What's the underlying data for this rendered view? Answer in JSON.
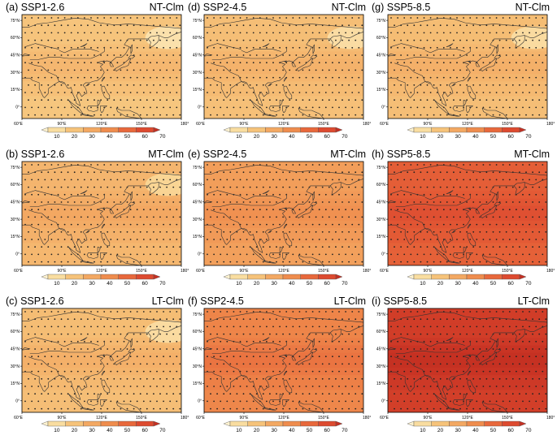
{
  "panels": [
    {
      "label": "(a)",
      "scenario": "SSP1-2.6",
      "period": "NT-Clm",
      "level": 0.3
    },
    {
      "label": "(d)",
      "scenario": "SSP2-4.5",
      "period": "NT-Clm",
      "level": 0.33
    },
    {
      "label": "(g)",
      "scenario": "SSP5-8.5",
      "period": "NT-Clm",
      "level": 0.34
    },
    {
      "label": "(b)",
      "scenario": "SSP1-2.6",
      "period": "MT-Clm",
      "level": 0.38
    },
    {
      "label": "(e)",
      "scenario": "SSP2-4.5",
      "period": "MT-Clm",
      "level": 0.5
    },
    {
      "label": "(h)",
      "scenario": "SSP5-8.5",
      "period": "MT-Clm",
      "level": 0.78
    },
    {
      "label": "(c)",
      "scenario": "SSP1-2.6",
      "period": "LT-Clm",
      "level": 0.34
    },
    {
      "label": "(f)",
      "scenario": "SSP2-4.5",
      "period": "LT-Clm",
      "level": 0.62
    },
    {
      "label": "(i)",
      "scenario": "SSP5-8.5",
      "period": "LT-Clm",
      "level": 0.95
    }
  ],
  "lat_ticks": [
    "75°N",
    "60°N",
    "45°N",
    "30°N",
    "15°N",
    "0°"
  ],
  "lon_ticks": [
    "60°E",
    "90°E",
    "120°E",
    "150°E",
    "180°"
  ],
  "colorbar": {
    "ticks": [
      "10",
      "20",
      "30",
      "40",
      "50",
      "60",
      "70"
    ],
    "colors": [
      "#fdf2cf",
      "#f9dda0",
      "#f6c37a",
      "#f3a862",
      "#ef8c4d",
      "#e8683b",
      "#dd4a2f",
      "#c53022"
    ]
  }
}
